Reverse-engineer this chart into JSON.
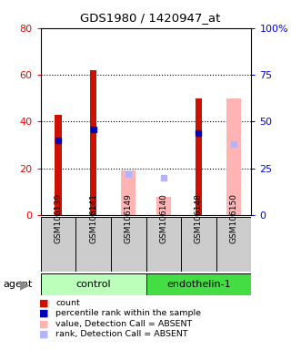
{
  "title": "GDS1980 / 1420947_at",
  "samples": [
    "GSM106139",
    "GSM106141",
    "GSM106149",
    "GSM106140",
    "GSM106148",
    "GSM106150"
  ],
  "count_values": [
    43,
    62,
    null,
    null,
    50,
    null
  ],
  "percentile_values": [
    40,
    46,
    null,
    null,
    44,
    null
  ],
  "absent_value_values": [
    null,
    null,
    19,
    8,
    null,
    50
  ],
  "absent_rank_values": [
    null,
    null,
    22,
    20,
    null,
    38
  ],
  "ylim_left": [
    0,
    80
  ],
  "ylim_right": [
    0,
    100
  ],
  "yticks_left": [
    0,
    20,
    40,
    60,
    80
  ],
  "yticks_right": [
    0,
    25,
    50,
    75,
    100
  ],
  "count_color": "#cc1100",
  "percentile_color": "#0000bb",
  "absent_value_color": "#ffb3b3",
  "absent_rank_color": "#b3b3ff",
  "control_color": "#bbffbb",
  "endothelin_color": "#44dd44",
  "sample_bg_color": "#cccccc"
}
